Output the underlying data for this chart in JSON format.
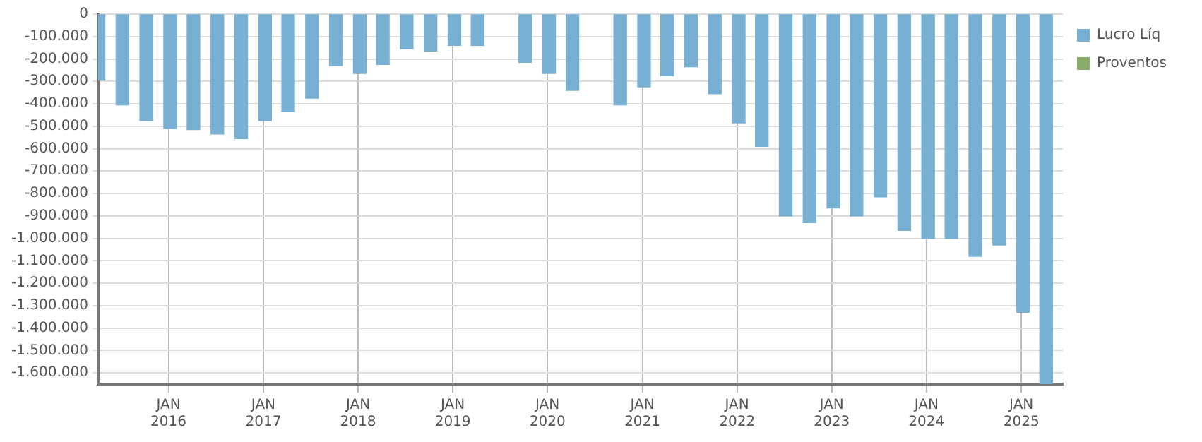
{
  "chart_data": {
    "type": "bar",
    "x": [
      "2015-05",
      "2015-08",
      "2015-11",
      "2016-02",
      "2016-05",
      "2016-08",
      "2016-11",
      "2017-02",
      "2017-05",
      "2017-08",
      "2017-11",
      "2018-02",
      "2018-05",
      "2018-08",
      "2018-11",
      "2019-02",
      "2019-05",
      "2019-08",
      "2019-11",
      "2020-02",
      "2020-05",
      "2020-08",
      "2020-11",
      "2021-02",
      "2021-05",
      "2021-08",
      "2021-11",
      "2022-02",
      "2022-05",
      "2022-08",
      "2022-11",
      "2023-02",
      "2023-05",
      "2023-08",
      "2023-11",
      "2024-02",
      "2024-05",
      "2024-08",
      "2024-11",
      "2025-02",
      "2025-05"
    ],
    "series": [
      {
        "name": "Lucro Líq",
        "color": "#77b0d3",
        "values": [
          -295000,
          -405000,
          -475000,
          -510000,
          -515000,
          -535000,
          -555000,
          -475000,
          -435000,
          -375000,
          -230000,
          -265000,
          -225000,
          -155000,
          -165000,
          -140000,
          -140000,
          null,
          -215000,
          -265000,
          -340000,
          null,
          -405000,
          -325000,
          -275000,
          -235000,
          -355000,
          -485000,
          -590000,
          -900000,
          -930000,
          -865000,
          -900000,
          -815000,
          -965000,
          -1000000,
          -1000000,
          -1080000,
          -1030000,
          -1330000,
          -1650000
        ]
      },
      {
        "name": "Proventos",
        "color": "#8aab6a",
        "values": [
          null,
          null,
          null,
          null,
          null,
          null,
          null,
          null,
          null,
          null,
          null,
          null,
          null,
          null,
          null,
          null,
          null,
          null,
          null,
          null,
          null,
          null,
          null,
          null,
          null,
          null,
          null,
          null,
          null,
          null,
          null,
          null,
          null,
          null,
          null,
          null,
          null,
          null,
          null,
          null,
          null
        ]
      }
    ],
    "xlim": [
      "2015-04-05",
      "2025-06-10"
    ],
    "xticks": [
      {
        "value": "2016-01",
        "label": "JAN\n2016"
      },
      {
        "value": "2017-01",
        "label": "JAN\n2017"
      },
      {
        "value": "2018-01",
        "label": "JAN\n2018"
      },
      {
        "value": "2019-01",
        "label": "JAN\n2019"
      },
      {
        "value": "2020-01",
        "label": "JAN\n2020"
      },
      {
        "value": "2021-01",
        "label": "JAN\n2021"
      },
      {
        "value": "2022-01",
        "label": "JAN\n2022"
      },
      {
        "value": "2023-01",
        "label": "JAN\n2023"
      },
      {
        "value": "2024-01",
        "label": "JAN\n2024"
      },
      {
        "value": "2025-01",
        "label": "JAN\n2025"
      }
    ],
    "ylim": [
      -1650000,
      0
    ],
    "yticks": [
      0,
      {
        "value": -100000,
        "label": "-100.000"
      },
      {
        "value": -200000,
        "label": "-200.000"
      },
      {
        "value": -300000,
        "label": "-300.000"
      },
      {
        "value": -400000,
        "label": "-400.000"
      },
      {
        "value": -500000,
        "label": "-500.000"
      },
      {
        "value": -600000,
        "label": "-600.000"
      },
      {
        "value": -700000,
        "label": "-700.000"
      },
      {
        "value": -800000,
        "label": "-800.000"
      },
      {
        "value": -900000,
        "label": "-900.000"
      },
      {
        "value": -1000000,
        "label": "-1.000.000"
      },
      {
        "value": -1100000,
        "label": "-1.100.000"
      },
      {
        "value": -1200000,
        "label": "-1.200.000"
      },
      {
        "value": -1300000,
        "label": "-1.300.000"
      },
      {
        "value": -1400000,
        "label": "-1.400.000"
      },
      {
        "value": -1500000,
        "label": "-1.500.000"
      },
      {
        "value": -1600000,
        "label": "-1.600.000"
      }
    ],
    "grid": true,
    "legend": "top right"
  }
}
